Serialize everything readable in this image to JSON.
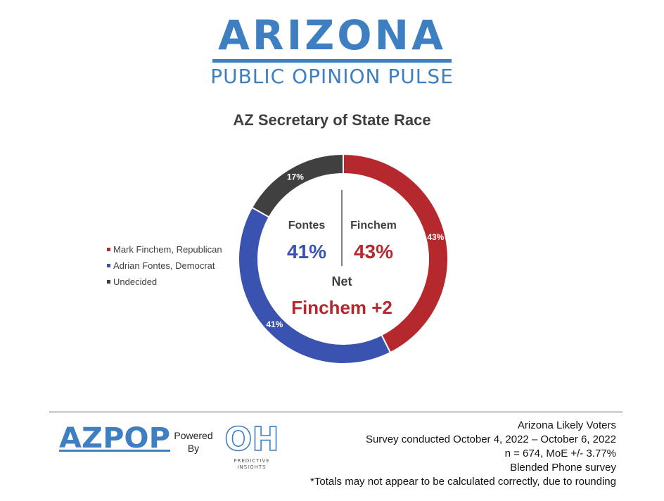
{
  "header": {
    "logo_word": "ARIZONA",
    "logo_sub": "PUBLIC OPINION PULSE",
    "brand_color": "#3d7fc1"
  },
  "chart_data": {
    "type": "pie",
    "title": "AZ Secretary of State Race",
    "style": "donut",
    "categories": [
      "Mark Finchem, Republican",
      "Adrian Fontes, Democrat",
      "Undecided"
    ],
    "values": [
      43,
      41,
      17
    ],
    "value_labels": [
      "43%",
      "41%",
      "17%"
    ],
    "colors": [
      "#b5282d",
      "#3a53b0",
      "#404040"
    ],
    "legend_position": "left",
    "center": {
      "left_name": "Fontes",
      "left_value": "41%",
      "left_color": "#3a53b0",
      "right_name": "Finchem",
      "right_value": "43%",
      "right_color": "#b5282d",
      "net_label": "Net",
      "net_value": "Finchem +2",
      "net_color": "#b5282d"
    }
  },
  "footer": {
    "brand_logo": "AZPOP",
    "powered_line1": "Powered",
    "powered_line2": "By",
    "partner_logo": "OH",
    "partner_sub": "PREDICTIVE",
    "partner_sub2": "INSIGHTS",
    "lines": [
      "Arizona Likely Voters",
      "Survey conducted October 4, 2022 – October 6, 2022",
      "n = 674, MoE +/- 3.77%",
      "Blended Phone survey",
      "*Totals may not appear to be calculated correctly, due to rounding"
    ]
  }
}
